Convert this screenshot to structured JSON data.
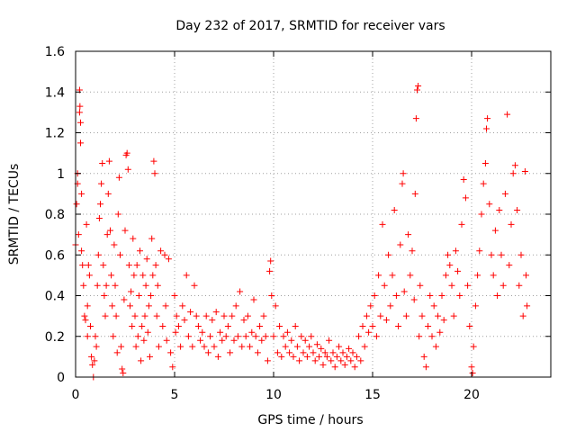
{
  "chart_data": {
    "type": "scatter",
    "title": "Day 232 of 2017, SRMTID for receiver vars",
    "xlabel": "GPS time / hours",
    "ylabel": "SRMTID / TECUs",
    "xlim": [
      0,
      24
    ],
    "ylim": [
      0,
      1.6
    ],
    "xticks": [
      0,
      5,
      10,
      15,
      20
    ],
    "xtick_labels": [
      "0",
      "5",
      "10",
      "15",
      "20"
    ],
    "yticks": [
      0,
      0.2,
      0.4,
      0.6,
      0.8,
      1.0,
      1.2,
      1.4,
      1.6
    ],
    "ytick_labels": [
      "0",
      "0.2",
      "0.4",
      "0.6",
      "0.8",
      "1",
      "1.2",
      "1.4",
      "1.6"
    ],
    "grid": true,
    "marker": "+",
    "color": "#ff0000",
    "series": [
      {
        "name": "receiver vars",
        "points": [
          [
            0.0,
            0.65
          ],
          [
            0.05,
            0.85
          ],
          [
            0.1,
            0.95
          ],
          [
            0.1,
            1.0
          ],
          [
            0.15,
            0.7
          ],
          [
            0.2,
            1.3
          ],
          [
            0.2,
            1.41
          ],
          [
            0.22,
            1.33
          ],
          [
            0.25,
            1.25
          ],
          [
            0.25,
            1.15
          ],
          [
            0.3,
            0.9
          ],
          [
            0.3,
            0.62
          ],
          [
            0.35,
            0.55
          ],
          [
            0.4,
            0.45
          ],
          [
            0.45,
            0.3
          ],
          [
            0.5,
            0.28
          ],
          [
            0.55,
            0.75
          ],
          [
            0.6,
            0.35
          ],
          [
            0.6,
            0.2
          ],
          [
            0.65,
            0.55
          ],
          [
            0.7,
            0.5
          ],
          [
            0.75,
            0.25
          ],
          [
            0.8,
            0.1
          ],
          [
            0.85,
            0.06
          ],
          [
            0.9,
            0.0
          ],
          [
            0.95,
            0.08
          ],
          [
            1.0,
            0.2
          ],
          [
            1.05,
            0.15
          ],
          [
            1.1,
            0.45
          ],
          [
            1.15,
            0.6
          ],
          [
            1.2,
            0.78
          ],
          [
            1.25,
            0.85
          ],
          [
            1.3,
            0.95
          ],
          [
            1.35,
            1.05
          ],
          [
            1.4,
            0.55
          ],
          [
            1.45,
            0.4
          ],
          [
            1.5,
            0.3
          ],
          [
            1.55,
            0.45
          ],
          [
            1.6,
            0.7
          ],
          [
            1.65,
            0.9
          ],
          [
            1.7,
            1.06
          ],
          [
            1.75,
            0.72
          ],
          [
            1.8,
            0.5
          ],
          [
            1.85,
            0.35
          ],
          [
            1.9,
            0.2
          ],
          [
            1.95,
            0.65
          ],
          [
            2.0,
            0.45
          ],
          [
            2.05,
            0.3
          ],
          [
            2.1,
            0.12
          ],
          [
            2.15,
            0.8
          ],
          [
            2.2,
            0.98
          ],
          [
            2.25,
            0.6
          ],
          [
            2.3,
            0.15
          ],
          [
            2.35,
            0.04
          ],
          [
            2.4,
            0.02
          ],
          [
            2.45,
            0.38
          ],
          [
            2.5,
            0.72
          ],
          [
            2.55,
            1.09
          ],
          [
            2.6,
            1.1
          ],
          [
            2.65,
            1.02
          ],
          [
            2.7,
            0.55
          ],
          [
            2.75,
            0.35
          ],
          [
            2.8,
            0.42
          ],
          [
            2.85,
            0.25
          ],
          [
            2.9,
            0.68
          ],
          [
            2.95,
            0.5
          ],
          [
            3.0,
            0.3
          ],
          [
            3.05,
            0.15
          ],
          [
            3.1,
            0.55
          ],
          [
            3.15,
            0.2
          ],
          [
            3.2,
            0.4
          ],
          [
            3.25,
            0.62
          ],
          [
            3.3,
            0.08
          ],
          [
            3.35,
            0.25
          ],
          [
            3.4,
            0.5
          ],
          [
            3.45,
            0.18
          ],
          [
            3.5,
            0.3
          ],
          [
            3.55,
            0.45
          ],
          [
            3.6,
            0.58
          ],
          [
            3.65,
            0.22
          ],
          [
            3.7,
            0.35
          ],
          [
            3.75,
            0.1
          ],
          [
            3.8,
            0.4
          ],
          [
            3.85,
            0.68
          ],
          [
            3.9,
            0.5
          ],
          [
            3.95,
            1.06
          ],
          [
            4.0,
            1.0
          ],
          [
            4.05,
            0.55
          ],
          [
            4.1,
            0.3
          ],
          [
            4.15,
            0.45
          ],
          [
            4.2,
            0.15
          ],
          [
            4.3,
            0.62
          ],
          [
            4.4,
            0.25
          ],
          [
            4.5,
            0.6
          ],
          [
            4.55,
            0.35
          ],
          [
            4.6,
            0.18
          ],
          [
            4.7,
            0.58
          ],
          [
            4.8,
            0.12
          ],
          [
            4.9,
            0.05
          ],
          [
            5.0,
            0.4
          ],
          [
            5.05,
            0.22
          ],
          [
            5.1,
            0.3
          ],
          [
            5.2,
            0.25
          ],
          [
            5.3,
            0.15
          ],
          [
            5.4,
            0.35
          ],
          [
            5.5,
            0.28
          ],
          [
            5.6,
            0.5
          ],
          [
            5.7,
            0.2
          ],
          [
            5.8,
            0.32
          ],
          [
            5.9,
            0.15
          ],
          [
            6.0,
            0.45
          ],
          [
            6.1,
            0.3
          ],
          [
            6.2,
            0.25
          ],
          [
            6.3,
            0.18
          ],
          [
            6.4,
            0.22
          ],
          [
            6.5,
            0.15
          ],
          [
            6.6,
            0.3
          ],
          [
            6.7,
            0.12
          ],
          [
            6.8,
            0.2
          ],
          [
            6.9,
            0.28
          ],
          [
            7.0,
            0.15
          ],
          [
            7.1,
            0.32
          ],
          [
            7.2,
            0.1
          ],
          [
            7.3,
            0.22
          ],
          [
            7.4,
            0.18
          ],
          [
            7.5,
            0.3
          ],
          [
            7.6,
            0.2
          ],
          [
            7.7,
            0.25
          ],
          [
            7.8,
            0.12
          ],
          [
            7.9,
            0.3
          ],
          [
            8.0,
            0.18
          ],
          [
            8.1,
            0.35
          ],
          [
            8.2,
            0.2
          ],
          [
            8.3,
            0.42
          ],
          [
            8.4,
            0.15
          ],
          [
            8.5,
            0.28
          ],
          [
            8.6,
            0.2
          ],
          [
            8.7,
            0.3
          ],
          [
            8.8,
            0.15
          ],
          [
            8.9,
            0.22
          ],
          [
            9.0,
            0.38
          ],
          [
            9.1,
            0.2
          ],
          [
            9.2,
            0.12
          ],
          [
            9.3,
            0.25
          ],
          [
            9.4,
            0.18
          ],
          [
            9.5,
            0.3
          ],
          [
            9.6,
            0.2
          ],
          [
            9.7,
            0.08
          ],
          [
            9.8,
            0.52
          ],
          [
            9.85,
            0.57
          ],
          [
            9.9,
            0.4
          ],
          [
            10.0,
            0.2
          ],
          [
            10.1,
            0.35
          ],
          [
            10.2,
            0.12
          ],
          [
            10.3,
            0.25
          ],
          [
            10.4,
            0.1
          ],
          [
            10.5,
            0.2
          ],
          [
            10.6,
            0.15
          ],
          [
            10.7,
            0.22
          ],
          [
            10.8,
            0.12
          ],
          [
            10.9,
            0.18
          ],
          [
            11.0,
            0.1
          ],
          [
            11.1,
            0.25
          ],
          [
            11.2,
            0.15
          ],
          [
            11.3,
            0.08
          ],
          [
            11.4,
            0.2
          ],
          [
            11.5,
            0.12
          ],
          [
            11.6,
            0.18
          ],
          [
            11.7,
            0.1
          ],
          [
            11.8,
            0.15
          ],
          [
            11.9,
            0.2
          ],
          [
            12.0,
            0.12
          ],
          [
            12.1,
            0.08
          ],
          [
            12.2,
            0.16
          ],
          [
            12.3,
            0.1
          ],
          [
            12.4,
            0.14
          ],
          [
            12.5,
            0.06
          ],
          [
            12.6,
            0.12
          ],
          [
            12.7,
            0.1
          ],
          [
            12.8,
            0.18
          ],
          [
            12.9,
            0.08
          ],
          [
            13.0,
            0.12
          ],
          [
            13.1,
            0.05
          ],
          [
            13.2,
            0.1
          ],
          [
            13.3,
            0.15
          ],
          [
            13.4,
            0.08
          ],
          [
            13.5,
            0.12
          ],
          [
            13.6,
            0.06
          ],
          [
            13.7,
            0.1
          ],
          [
            13.8,
            0.14
          ],
          [
            13.9,
            0.08
          ],
          [
            14.0,
            0.12
          ],
          [
            14.1,
            0.05
          ],
          [
            14.2,
            0.1
          ],
          [
            14.3,
            0.2
          ],
          [
            14.4,
            0.08
          ],
          [
            14.5,
            0.25
          ],
          [
            14.6,
            0.15
          ],
          [
            14.7,
            0.3
          ],
          [
            14.8,
            0.22
          ],
          [
            14.9,
            0.35
          ],
          [
            15.0,
            0.25
          ],
          [
            15.1,
            0.4
          ],
          [
            15.2,
            0.2
          ],
          [
            15.3,
            0.5
          ],
          [
            15.4,
            0.3
          ],
          [
            15.5,
            0.75
          ],
          [
            15.6,
            0.45
          ],
          [
            15.7,
            0.28
          ],
          [
            15.8,
            0.6
          ],
          [
            15.9,
            0.35
          ],
          [
            16.0,
            0.5
          ],
          [
            16.1,
            0.82
          ],
          [
            16.2,
            0.4
          ],
          [
            16.3,
            0.25
          ],
          [
            16.4,
            0.65
          ],
          [
            16.5,
            0.95
          ],
          [
            16.55,
            1.0
          ],
          [
            16.6,
            0.42
          ],
          [
            16.7,
            0.3
          ],
          [
            16.8,
            0.7
          ],
          [
            16.9,
            0.5
          ],
          [
            17.0,
            0.62
          ],
          [
            17.1,
            0.38
          ],
          [
            17.15,
            0.9
          ],
          [
            17.2,
            1.27
          ],
          [
            17.25,
            1.41
          ],
          [
            17.3,
            1.43
          ],
          [
            17.35,
            0.2
          ],
          [
            17.4,
            0.45
          ],
          [
            17.5,
            0.3
          ],
          [
            17.6,
            0.1
          ],
          [
            17.7,
            0.05
          ],
          [
            17.8,
            0.25
          ],
          [
            17.9,
            0.4
          ],
          [
            18.0,
            0.2
          ],
          [
            18.1,
            0.35
          ],
          [
            18.2,
            0.15
          ],
          [
            18.3,
            0.3
          ],
          [
            18.4,
            0.22
          ],
          [
            18.5,
            0.4
          ],
          [
            18.6,
            0.28
          ],
          [
            18.7,
            0.5
          ],
          [
            18.8,
            0.6
          ],
          [
            18.9,
            0.55
          ],
          [
            19.0,
            0.45
          ],
          [
            19.1,
            0.3
          ],
          [
            19.2,
            0.62
          ],
          [
            19.3,
            0.52
          ],
          [
            19.4,
            0.4
          ],
          [
            19.5,
            0.75
          ],
          [
            19.6,
            0.97
          ],
          [
            19.7,
            0.88
          ],
          [
            19.8,
            0.45
          ],
          [
            19.9,
            0.25
          ],
          [
            20.0,
            0.05
          ],
          [
            20.05,
            0.02
          ],
          [
            20.1,
            0.15
          ],
          [
            20.2,
            0.35
          ],
          [
            20.3,
            0.5
          ],
          [
            20.4,
            0.62
          ],
          [
            20.5,
            0.8
          ],
          [
            20.6,
            0.95
          ],
          [
            20.7,
            1.05
          ],
          [
            20.75,
            1.22
          ],
          [
            20.8,
            1.27
          ],
          [
            20.9,
            0.85
          ],
          [
            21.0,
            0.6
          ],
          [
            21.1,
            0.5
          ],
          [
            21.2,
            0.72
          ],
          [
            21.3,
            0.4
          ],
          [
            21.4,
            0.82
          ],
          [
            21.5,
            0.6
          ],
          [
            21.6,
            0.45
          ],
          [
            21.7,
            0.9
          ],
          [
            21.8,
            1.29
          ],
          [
            21.9,
            0.55
          ],
          [
            22.0,
            0.75
          ],
          [
            22.1,
            1.0
          ],
          [
            22.2,
            1.04
          ],
          [
            22.3,
            0.82
          ],
          [
            22.4,
            0.45
          ],
          [
            22.5,
            0.6
          ],
          [
            22.6,
            0.3
          ],
          [
            22.7,
            1.01
          ],
          [
            22.75,
            0.5
          ],
          [
            22.8,
            0.35
          ]
        ]
      }
    ]
  }
}
